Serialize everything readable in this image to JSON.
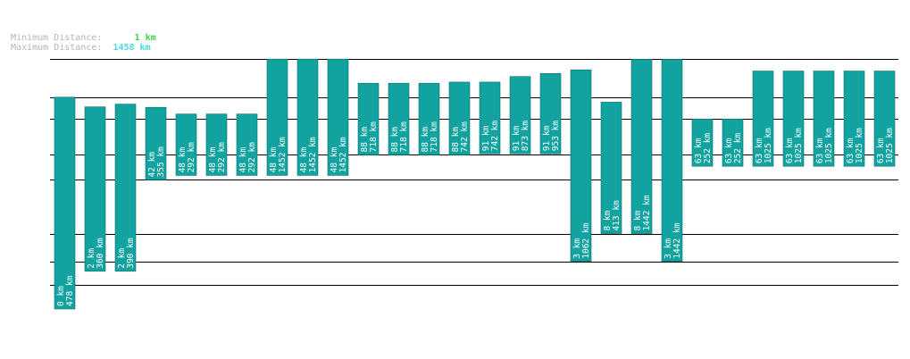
{
  "legend": {
    "min_label": "Minimum Distance:",
    "min_value": "1 km",
    "max_label": "Maximum Distance:",
    "max_value": "1458 km"
  },
  "colors": {
    "bar": "#12a3a0",
    "bar_border": "#0a6f6c",
    "grid": "#000000",
    "min_text": "#39d84a",
    "max_text": "#49d8e0",
    "label_text": "#b4b4b4"
  },
  "chart_data": {
    "type": "bar",
    "title": "",
    "xlabel": "",
    "ylabel": "",
    "note": "Floating range bars: each bar spans from its minimum to its maximum distance.",
    "series": [
      {
        "name": "range",
        "items": [
          {
            "min": 0,
            "max": 478,
            "label_min": "0 km",
            "label_max": "478 km"
          },
          {
            "min": 2,
            "max": 360,
            "label_min": "2 km",
            "label_max": "360 km"
          },
          {
            "min": 2,
            "max": 390,
            "label_min": "2 km",
            "label_max": "390 km"
          },
          {
            "min": 42,
            "max": 355,
            "label_min": "42 km",
            "label_max": "355 km"
          },
          {
            "min": 48,
            "max": 292,
            "label_min": "48 km",
            "label_max": "292 km"
          },
          {
            "min": 48,
            "max": 292,
            "label_min": "48 km",
            "label_max": "292 km"
          },
          {
            "min": 48,
            "max": 292,
            "label_min": "48 km",
            "label_max": "292 km"
          },
          {
            "min": 48,
            "max": 1452,
            "label_min": "48 km",
            "label_max": "1452 km"
          },
          {
            "min": 48,
            "max": 1452,
            "label_min": "48 km",
            "label_max": "1452 km"
          },
          {
            "min": 48,
            "max": 1452,
            "label_min": "48 km",
            "label_max": "1452 km"
          },
          {
            "min": 88,
            "max": 718,
            "label_min": "88 km",
            "label_max": "718 km"
          },
          {
            "min": 88,
            "max": 718,
            "label_min": "88 km",
            "label_max": "718 km"
          },
          {
            "min": 88,
            "max": 718,
            "label_min": "88 km",
            "label_max": "718 km"
          },
          {
            "min": 88,
            "max": 742,
            "label_min": "88 km",
            "label_max": "742 km"
          },
          {
            "min": 91,
            "max": 742,
            "label_min": "91 km",
            "label_max": "742 km"
          },
          {
            "min": 91,
            "max": 873,
            "label_min": "91 km",
            "label_max": "873 km"
          },
          {
            "min": 91,
            "max": 953,
            "label_min": "91 km",
            "label_max": "953 km"
          },
          {
            "min": 3,
            "max": 1062,
            "label_min": "3 km",
            "label_max": "1062 km"
          },
          {
            "min": 8,
            "max": 413,
            "label_min": "8 km",
            "label_max": "413 km"
          },
          {
            "min": 8,
            "max": 1442,
            "label_min": "8 km",
            "label_max": "1442 km"
          },
          {
            "min": 3,
            "max": 1442,
            "label_min": "3 km",
            "label_max": "1442 km"
          },
          {
            "min": 63,
            "max": 252,
            "label_min": "63 km",
            "label_max": "252 km"
          },
          {
            "min": 63,
            "max": 252,
            "label_min": "63 km",
            "label_max": "252 km"
          },
          {
            "min": 63,
            "max": 1025,
            "label_min": "63 km",
            "label_max": "1025 km"
          },
          {
            "min": 63,
            "max": 1025,
            "label_min": "63 km",
            "label_max": "1025 km"
          },
          {
            "min": 63,
            "max": 1025,
            "label_min": "63 km",
            "label_max": "1025 km"
          },
          {
            "min": 63,
            "max": 1025,
            "label_min": "63 km",
            "label_max": "1025 km"
          },
          {
            "min": 63,
            "max": 1025,
            "label_min": "63 km",
            "label_max": "1025 km"
          }
        ]
      }
    ],
    "gridlines": [
      0,
      1,
      3,
      8,
      42,
      88,
      252,
      478,
      1458
    ]
  }
}
